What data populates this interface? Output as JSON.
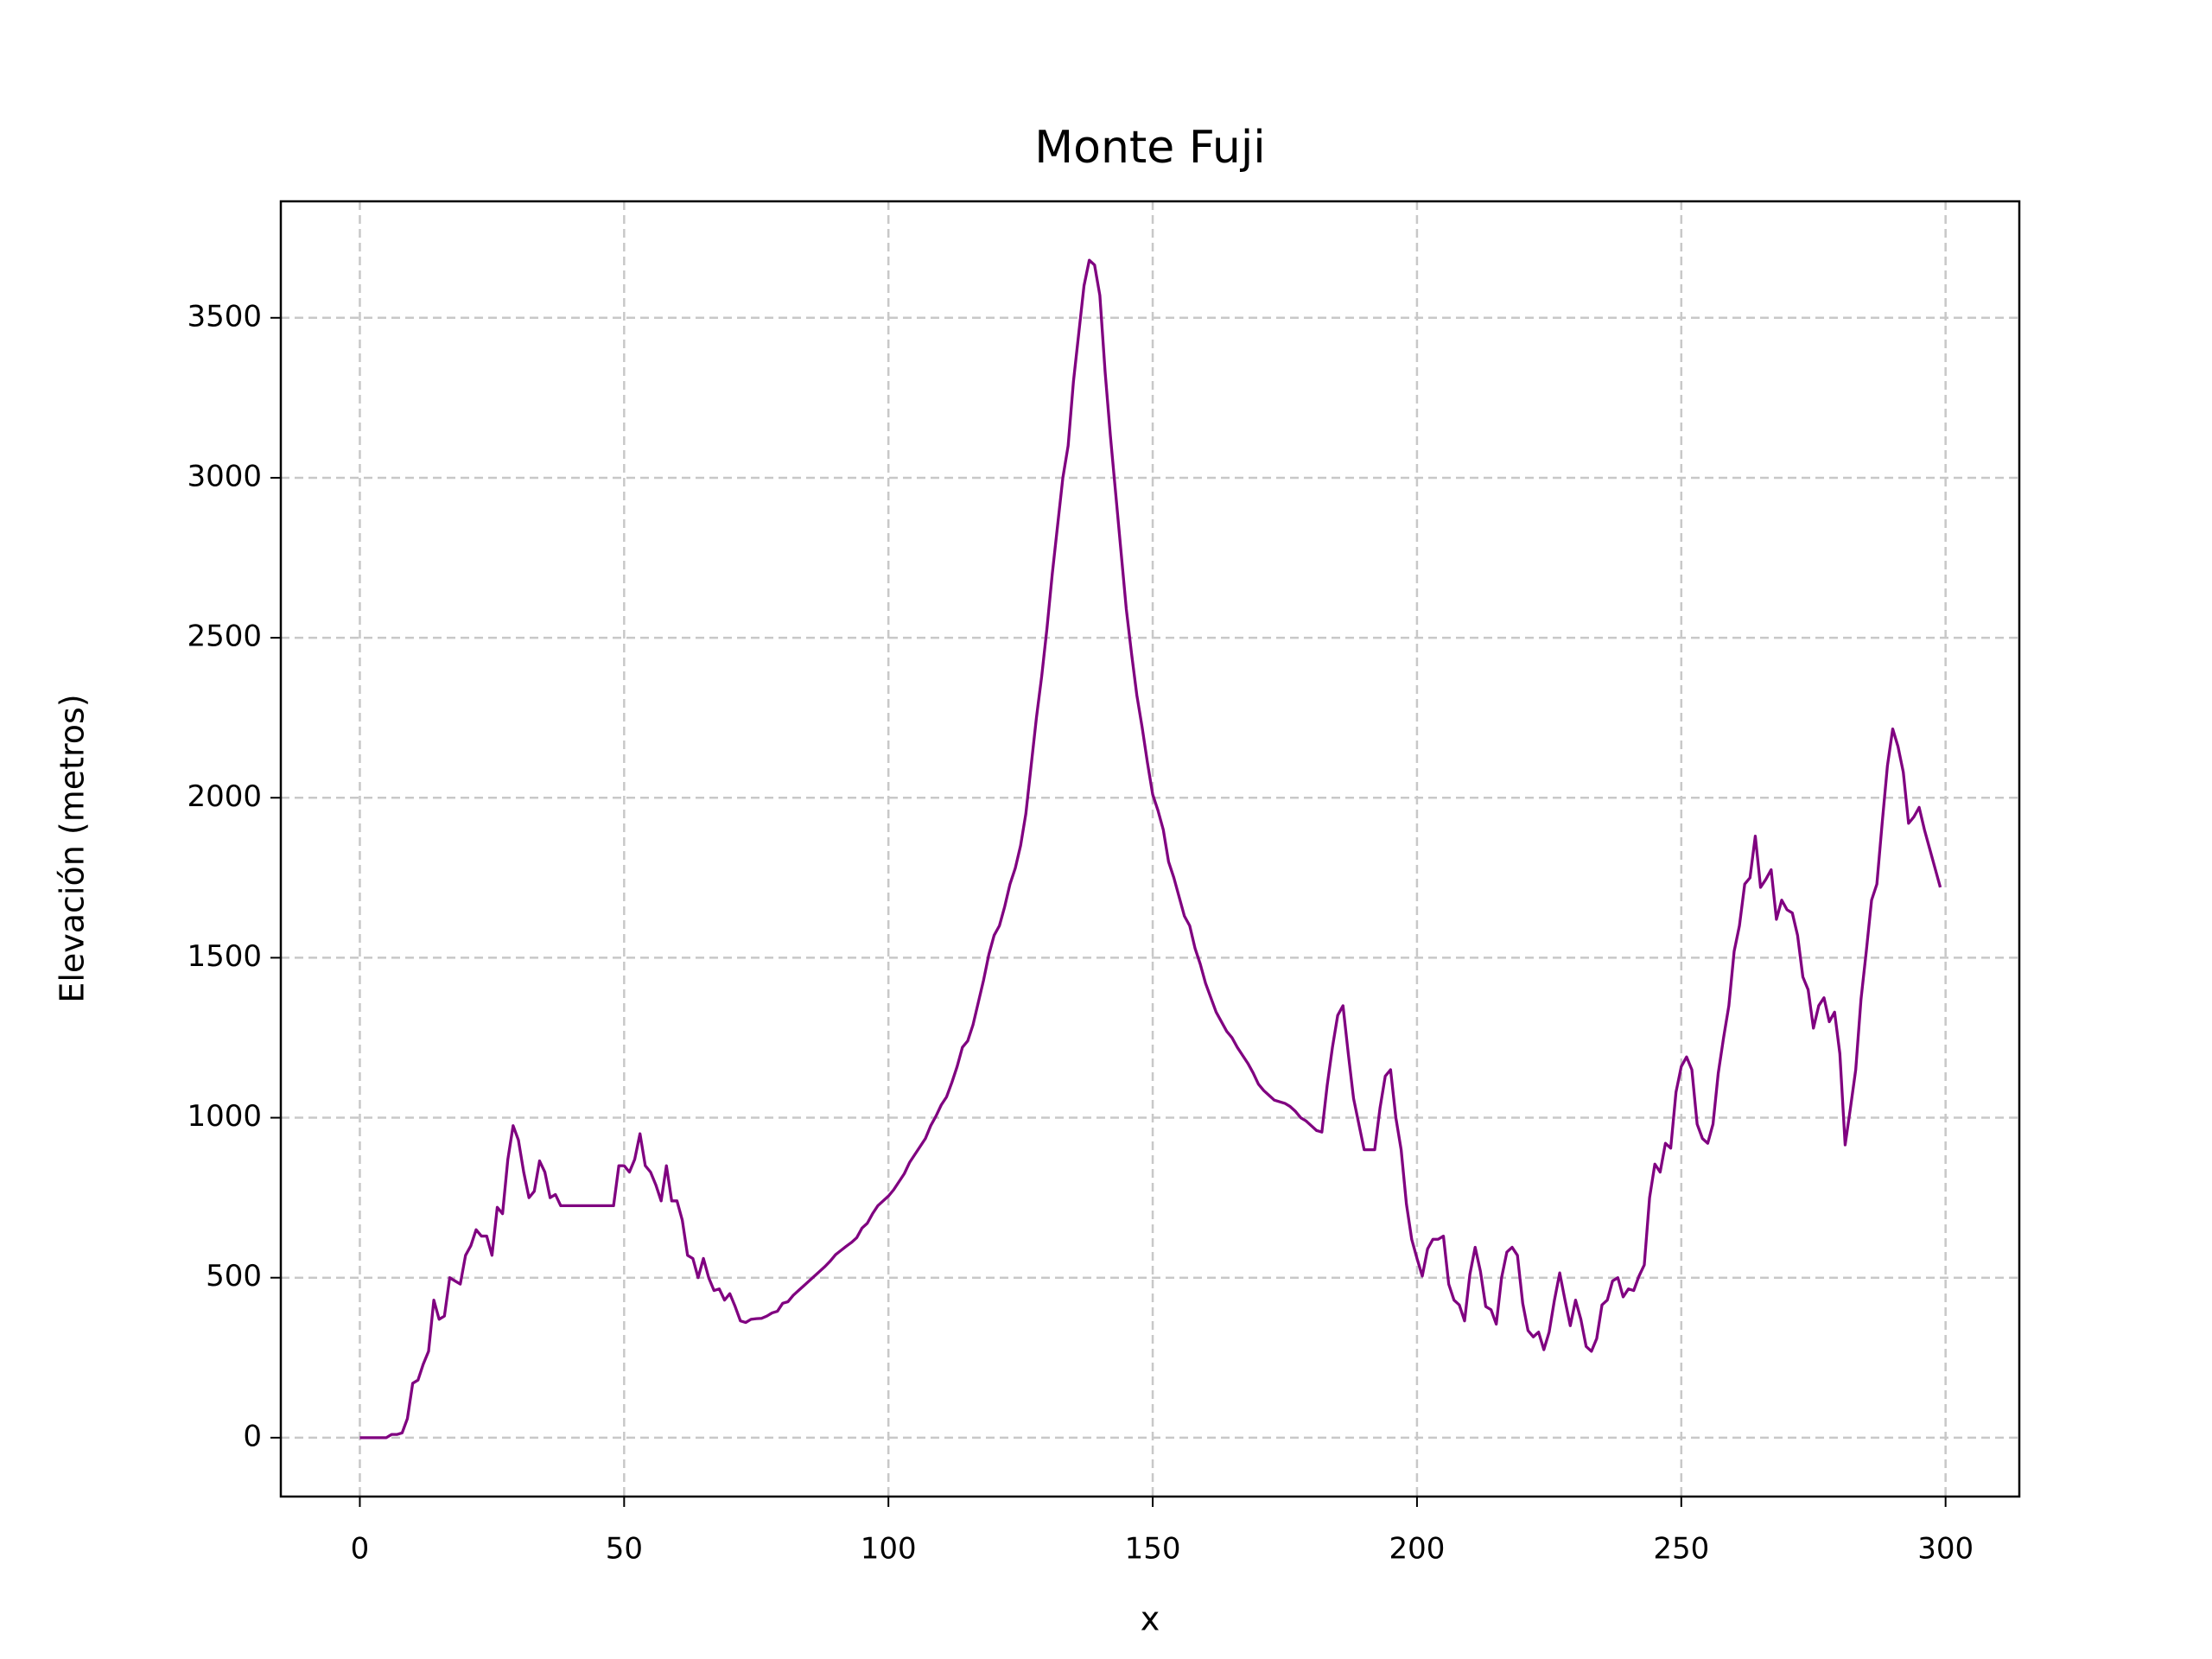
{
  "chart_data": {
    "type": "line",
    "title": "Monte Fuji",
    "xlabel": "x",
    "ylabel": "Elevación (metros)",
    "x": [
      0,
      1,
      2,
      3,
      4,
      5,
      6,
      7,
      8,
      9,
      10,
      11,
      12,
      13,
      14,
      15,
      16,
      17,
      18,
      19,
      20,
      21,
      22,
      23,
      24,
      25,
      26,
      27,
      28,
      29,
      30,
      31,
      32,
      33,
      34,
      35,
      36,
      37,
      38,
      39,
      40,
      41,
      42,
      43,
      44,
      45,
      46,
      47,
      48,
      49,
      50,
      51,
      52,
      53,
      54,
      55,
      56,
      57,
      58,
      59,
      60,
      61,
      62,
      63,
      64,
      65,
      66,
      67,
      68,
      69,
      70,
      71,
      72,
      73,
      74,
      75,
      76,
      77,
      78,
      79,
      80,
      81,
      82,
      83,
      84,
      85,
      86,
      87,
      88,
      89,
      90,
      91,
      92,
      93,
      94,
      95,
      96,
      97,
      98,
      99,
      100,
      101,
      102,
      103,
      104,
      105,
      106,
      107,
      108,
      109,
      110,
      111,
      112,
      113,
      114,
      115,
      116,
      117,
      118,
      119,
      120,
      121,
      122,
      123,
      124,
      125,
      126,
      127,
      128,
      129,
      130,
      131,
      132,
      133,
      134,
      135,
      136,
      137,
      138,
      139,
      140,
      141,
      142,
      143,
      144,
      145,
      146,
      147,
      148,
      149,
      150,
      151,
      152,
      153,
      154,
      155,
      156,
      157,
      158,
      159,
      160,
      161,
      162,
      163,
      164,
      165,
      166,
      167,
      168,
      169,
      170,
      171,
      172,
      173,
      174,
      175,
      176,
      177,
      178,
      179,
      180,
      181,
      182,
      183,
      184,
      185,
      186,
      187,
      188,
      189,
      190,
      191,
      192,
      193,
      194,
      195,
      196,
      197,
      198,
      199,
      200,
      201,
      202,
      203,
      204,
      205,
      206,
      207,
      208,
      209,
      210,
      211,
      212,
      213,
      214,
      215,
      216,
      217,
      218,
      219,
      220,
      221,
      222,
      223,
      224,
      225,
      226,
      227,
      228,
      229,
      230,
      231,
      232,
      233,
      234,
      235,
      236,
      237,
      238,
      239,
      240,
      241,
      242,
      243,
      244,
      245,
      246,
      247,
      248,
      249,
      250,
      251,
      252,
      253,
      254,
      255,
      256,
      257,
      258,
      259,
      260,
      261,
      262,
      263,
      264,
      265,
      266,
      267,
      268,
      269,
      270,
      271,
      272,
      273,
      274,
      275,
      276,
      277,
      278,
      279,
      280,
      281,
      282,
      283,
      284,
      285,
      286,
      287,
      288,
      289,
      290,
      291,
      292,
      293,
      294,
      295,
      296,
      297,
      298,
      299
    ],
    "series": [
      {
        "name": "Monte Fuji",
        "color": "#800080",
        "values": [
          0,
          0,
          0,
          0,
          0,
          0,
          10,
          10,
          15,
          60,
          170,
          180,
          230,
          270,
          430,
          370,
          380,
          500,
          490,
          480,
          570,
          600,
          650,
          630,
          630,
          570,
          720,
          700,
          870,
          975,
          930,
          830,
          750,
          770,
          865,
          830,
          750,
          760,
          725,
          725,
          725,
          725,
          725,
          725,
          725,
          725,
          725,
          725,
          725,
          850,
          850,
          830,
          870,
          950,
          850,
          830,
          790,
          740,
          850,
          740,
          740,
          680,
          570,
          560,
          500,
          560,
          500,
          460,
          465,
          430,
          450,
          410,
          365,
          360,
          370,
          372,
          373,
          380,
          390,
          395,
          420,
          425,
          445,
          460,
          475,
          490,
          505,
          520,
          535,
          552,
          572,
          585,
          598,
          610,
          625,
          655,
          670,
          700,
          725,
          740,
          755,
          775,
          800,
          825,
          860,
          885,
          910,
          935,
          975,
          1005,
          1040,
          1065,
          1110,
          1160,
          1220,
          1240,
          1290,
          1360,
          1430,
          1510,
          1570,
          1600,
          1660,
          1730,
          1780,
          1850,
          1950,
          2100,
          2250,
          2380,
          2530,
          2700,
          2850,
          3000,
          3100,
          3300,
          3450,
          3600,
          3680,
          3665,
          3570,
          3330,
          3130,
          2950,
          2770,
          2590,
          2450,
          2320,
          2220,
          2110,
          2010,
          1960,
          1900,
          1800,
          1750,
          1690,
          1630,
          1600,
          1530,
          1480,
          1420,
          1375,
          1330,
          1300,
          1270,
          1250,
          1220,
          1195,
          1170,
          1140,
          1105,
          1085,
          1070,
          1055,
          1050,
          1045,
          1035,
          1020,
          1000,
          990,
          975,
          960,
          955,
          1100,
          1220,
          1320,
          1350,
          1200,
          1060,
          980,
          900,
          900,
          900,
          1030,
          1130,
          1150,
          1000,
          900,
          730,
          620,
          560,
          505,
          590,
          620,
          620,
          630,
          480,
          430,
          415,
          365,
          510,
          595,
          520,
          410,
          400,
          355,
          500,
          580,
          595,
          570,
          420,
          335,
          315,
          330,
          275,
          330,
          430,
          515,
          430,
          350,
          430,
          370,
          285,
          270,
          310,
          415,
          430,
          490,
          500,
          440,
          465,
          460,
          505,
          540,
          750,
          855,
          830,
          920,
          905,
          1080,
          1160,
          1190,
          1150,
          980,
          935,
          920,
          980,
          1140,
          1250,
          1350,
          1520,
          1600,
          1730,
          1750,
          1880,
          1720,
          1745,
          1775,
          1620,
          1680,
          1650,
          1640,
          1570,
          1440,
          1400,
          1280,
          1350,
          1375,
          1300,
          1330,
          1200,
          915,
          1030,
          1150,
          1370,
          1520,
          1680,
          1730,
          1920,
          2100,
          2215,
          2160,
          2080,
          1920,
          1940,
          1970,
          1900,
          1840,
          1780,
          1720
        ]
      }
    ],
    "xlim": [
      -14.95,
      313.95
    ],
    "ylim": [
      -184,
      3864
    ],
    "xticks": [
      0,
      50,
      100,
      150,
      200,
      250,
      300
    ],
    "yticks": [
      0,
      500,
      1000,
      1500,
      2000,
      2500,
      3000,
      3500
    ],
    "grid": true,
    "label_color": "#8b0000"
  }
}
